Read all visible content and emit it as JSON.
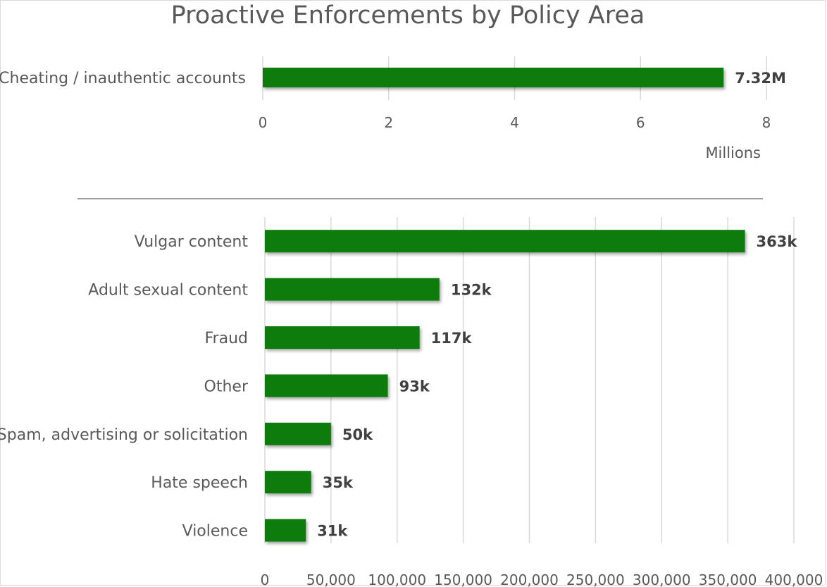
{
  "chart_data": [
    {
      "type": "bar",
      "orientation": "horizontal",
      "title": "Proactive Enforcements by Policy Area",
      "categories": [
        "Cheating / inauthentic accounts"
      ],
      "values": [
        7.32
      ],
      "data_labels": [
        "7.32M"
      ],
      "xlim": [
        0,
        8
      ],
      "xticks": [
        0,
        2,
        4,
        6,
        8
      ],
      "tick_labels": [
        "0",
        "2",
        "4",
        "6",
        "8"
      ],
      "unit_label": "Millions",
      "color": "#107c10",
      "grid": true
    },
    {
      "type": "bar",
      "orientation": "horizontal",
      "categories": [
        "Vulgar content",
        "Adult sexual content",
        "Fraud",
        "Other",
        "Spam, advertising or solicitation",
        "Hate speech",
        "Violence"
      ],
      "values": [
        363000,
        132000,
        117000,
        93000,
        50000,
        35000,
        31000
      ],
      "data_labels": [
        "363k",
        "132k",
        "117k",
        "93k",
        "50k",
        "35k",
        "31k"
      ],
      "xlim": [
        0,
        400000
      ],
      "xticks": [
        0,
        50000,
        100000,
        150000,
        200000,
        250000,
        300000,
        350000,
        400000
      ],
      "tick_labels": [
        "0",
        "50,000",
        "100,000",
        "150,000",
        "200,000",
        "250,000",
        "300,000",
        "350,000",
        "400,000"
      ],
      "color": "#107c10",
      "grid": true
    }
  ]
}
